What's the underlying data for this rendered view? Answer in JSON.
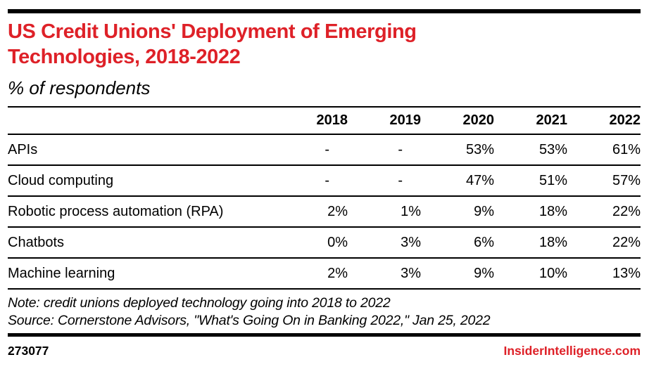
{
  "page": {
    "title_lines": [
      "US Credit Unions' Deployment of Emerging",
      "Technologies, 2018-2022"
    ],
    "subtitle": "% of respondents",
    "note": "Note: credit unions deployed technology going into 2018 to 2022",
    "source": "Source: Cornerstone Advisors, \"What's Going On in Banking 2022,\" Jan 25, 2022",
    "chart_id": "273077",
    "site": "InsiderIntelligence.com"
  },
  "colors": {
    "accent_red": "#DE2128",
    "rule_black": "#000000",
    "background": "#FFFFFF"
  },
  "table": {
    "columns": [
      "2018",
      "2019",
      "2020",
      "2021",
      "2022"
    ],
    "rows": [
      {
        "label": "APIs",
        "values": [
          "-",
          "-",
          "53%",
          "53%",
          "61%"
        ]
      },
      {
        "label": "Cloud computing",
        "values": [
          "-",
          "-",
          "47%",
          "51%",
          "57%"
        ]
      },
      {
        "label": "Robotic process automation (RPA)",
        "values": [
          "2%",
          "1%",
          "9%",
          "18%",
          "22%"
        ]
      },
      {
        "label": "Chatbots",
        "values": [
          "0%",
          "3%",
          "6%",
          "18%",
          "22%"
        ]
      },
      {
        "label": "Machine learning",
        "values": [
          "2%",
          "3%",
          "9%",
          "10%",
          "13%"
        ]
      }
    ]
  },
  "chart_data": {
    "type": "table",
    "title": "US Credit Unions' Deployment of Emerging Technologies, 2018-2022",
    "subtitle": "% of respondents",
    "unit": "%",
    "categories": [
      "2018",
      "2019",
      "2020",
      "2021",
      "2022"
    ],
    "series": [
      {
        "name": "APIs",
        "values": [
          null,
          null,
          53,
          53,
          61
        ]
      },
      {
        "name": "Cloud computing",
        "values": [
          null,
          null,
          47,
          51,
          57
        ]
      },
      {
        "name": "Robotic process automation (RPA)",
        "values": [
          2,
          1,
          9,
          18,
          22
        ]
      },
      {
        "name": "Chatbots",
        "values": [
          0,
          3,
          6,
          18,
          22
        ]
      },
      {
        "name": "Machine learning",
        "values": [
          2,
          3,
          9,
          10,
          13
        ]
      }
    ],
    "note": "Note: credit unions deployed technology going into 2018 to 2022",
    "source": "Source: Cornerstone Advisors, \"What's Going On in Banking 2022,\" Jan 25, 2022",
    "chart_id": "273077",
    "publisher": "InsiderIntelligence.com"
  }
}
